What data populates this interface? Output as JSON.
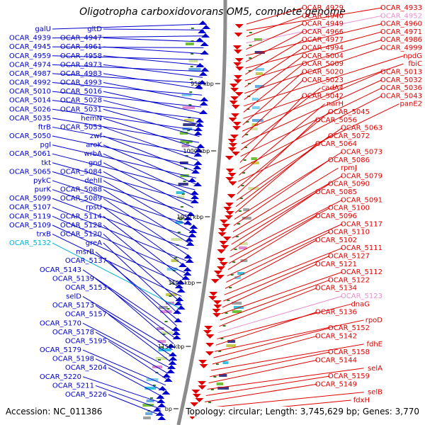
{
  "title": "Oligotropha carboxidovorans OM5, complete genome",
  "footer": {
    "accession": "Accession: NC_011386",
    "summary": "Topology: circular; Length: 3,745,629 bp; Genes: 3,770"
  },
  "colors": {
    "left_strand": "#0000cc",
    "right_strand": "#e00000",
    "highlight_cyan": "#00b4d8",
    "highlight_pink": "#e890d0",
    "backbone": "#8c8c8c",
    "tick": "#2e7d1e"
  },
  "kbp_ticks": [
    "950 kbp",
    "1000 kbp",
    "1050 kbp",
    "1100 kbp",
    "1150 kbp",
    "bp"
  ],
  "left_labels": [
    "galU",
    "gltD",
    "OCAR_4939",
    "OCAR_4947",
    "OCAR_4945",
    "OCAR_4961",
    "OCAR_4959",
    "OCAR_4958",
    "OCAR_4974",
    "OCAR_4973",
    "OCAR_4987",
    "OCAR_4983",
    "OCAR_4992",
    "OCAR_4993",
    "OCAR_5010",
    "OCAR_5016",
    "OCAR_5014",
    "OCAR_5028",
    "OCAR_5026",
    "OCAR_5031",
    "OCAR_5035",
    "hemN",
    "ftrB",
    "OCAR_5053",
    "OCAR_5050",
    "zwf",
    "pgl",
    "aroK",
    "OCAR_5061",
    "wrbA",
    "tkt",
    "gnd",
    "OCAR_5065",
    "OCAR_5084",
    "pykC",
    "dehII",
    "purK",
    "OCAR_5088",
    "OCAR_5099",
    "OCAR_5089",
    "OCAR_5107",
    "rpsU",
    "OCAR_5119",
    "OCAR_5114",
    "OCAR_5109",
    "OCAR_5128",
    "trxB",
    "OCAR_5120",
    "OCAR_5132",
    "greA",
    "msrB",
    "OCAR_5137",
    "OCAR_5143",
    "OCAR_5139",
    "OCAR_5153",
    "selD",
    "OCAR_5173",
    "OCAR_5157",
    "OCAR_5170",
    "OCAR_5178",
    "OCAR_5195",
    "OCAR_5179",
    "OCAR_5198",
    "OCAR_5204",
    "OCAR_5220",
    "OCAR_5211",
    "OCAR_5226"
  ],
  "right_labels": [
    "OCAR_4929",
    "OCAR_4933",
    "OCAR_4940",
    "OCAR_4952",
    "OCAR_4949",
    "OCAR_4960",
    "OCAR_4966",
    "OCAR_4971",
    "OCAR_4977",
    "OCAR_4986",
    "OCAR_4994",
    "OCAR_4999",
    "OCAR_5004",
    "npdG",
    "OCAR_5009",
    "fbiC",
    "OCAR_5020",
    "OCAR_5013",
    "OCAR_5023",
    "OCAR_5032",
    "cadA4",
    "OCAR_5036",
    "OCAR_5042",
    "OCAR_5043",
    "narH",
    "panE2",
    "OCAR_5045",
    "OCAR_5056",
    "OCAR_5063",
    "OCAR_5072",
    "OCAR_5064",
    "OCAR_5073",
    "OCAR_5086",
    "rpmJ",
    "OCAR_5079",
    "OCAR_5090",
    "OCAR_5085",
    "OCAR_5091",
    "OCAR_5100",
    "OCAR_5096",
    "OCAR_5117",
    "OCAR_5110",
    "OCAR_5102",
    "OCAR_5111",
    "OCAR_5127",
    "OCAR_5121",
    "OCAR_5112",
    "OCAR_5122",
    "OCAR_5134",
    "OCAR_5123",
    "dnaG",
    "OCAR_5136",
    "rpoD",
    "OCAR_5152",
    "OCAR_5142",
    "fdhE",
    "OCAR_5158",
    "OCAR_5144",
    "selA",
    "OCAR_5159",
    "OCAR_5149",
    "selB",
    "fdxH"
  ]
}
